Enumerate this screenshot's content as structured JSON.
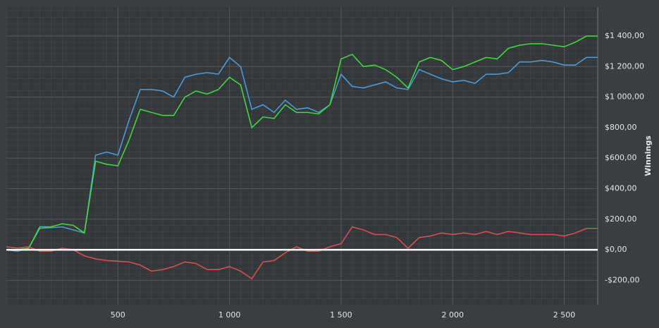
{
  "chart_data": {
    "type": "line",
    "y_label": "Winnings",
    "x": [
      0,
      50,
      100,
      150,
      200,
      250,
      300,
      350,
      400,
      450,
      500,
      550,
      600,
      650,
      700,
      750,
      800,
      850,
      900,
      950,
      1000,
      1050,
      1100,
      1150,
      1200,
      1250,
      1300,
      1350,
      1400,
      1450,
      1500,
      1550,
      1600,
      1650,
      1700,
      1750,
      1800,
      1850,
      1900,
      1950,
      2000,
      2050,
      2100,
      2150,
      2200,
      2250,
      2300,
      2350,
      2400,
      2450,
      2500,
      2550,
      2600,
      2650
    ],
    "series": [
      {
        "color": "#4a9fe0",
        "values": [
          0,
          -10,
          10,
          140,
          145,
          150,
          130,
          110,
          620,
          640,
          620,
          850,
          1050,
          1050,
          1040,
          1000,
          1130,
          1150,
          1160,
          1150,
          1260,
          1200,
          920,
          950,
          900,
          980,
          920,
          930,
          900,
          950,
          1150,
          1070,
          1060,
          1080,
          1100,
          1060,
          1050,
          1180,
          1150,
          1120,
          1100,
          1110,
          1090,
          1150,
          1150,
          1160,
          1230,
          1230,
          1240,
          1230,
          1210,
          1210,
          1260,
          1260
        ]
      },
      {
        "color": "#3de03d",
        "values": [
          0,
          0,
          10,
          150,
          150,
          170,
          160,
          110,
          580,
          560,
          550,
          720,
          920,
          900,
          880,
          880,
          1000,
          1040,
          1020,
          1050,
          1130,
          1080,
          800,
          870,
          860,
          950,
          900,
          900,
          890,
          950,
          1250,
          1280,
          1200,
          1210,
          1180,
          1130,
          1060,
          1230,
          1260,
          1240,
          1180,
          1200,
          1230,
          1260,
          1250,
          1320,
          1340,
          1350,
          1350,
          1340,
          1330,
          1360,
          1400,
          1400
        ]
      },
      {
        "color": "#e05050",
        "values": [
          20,
          10,
          20,
          -10,
          -10,
          10,
          0,
          -40,
          -60,
          -70,
          -75,
          -80,
          -100,
          -140,
          -130,
          -110,
          -80,
          -90,
          -130,
          -130,
          -110,
          -140,
          -190,
          -80,
          -70,
          -20,
          20,
          -10,
          -10,
          20,
          40,
          150,
          130,
          100,
          100,
          80,
          10,
          80,
          90,
          110,
          100,
          110,
          100,
          120,
          100,
          120,
          110,
          100,
          100,
          100,
          90,
          110,
          140,
          140
        ]
      }
    ],
    "xlim": [
      0,
      2650
    ],
    "ylim": [
      -360,
      1590
    ],
    "xticks": [
      500,
      {
        "value": 1000,
        "label": "1 000"
      },
      {
        "value": 1500,
        "label": "1 500"
      },
      {
        "value": 2000,
        "label": "2 000"
      },
      {
        "value": 2500,
        "label": "2 500"
      }
    ],
    "yticks": [
      {
        "value": -200,
        "label": "-$200,00"
      },
      {
        "value": 0,
        "label": "$0,00"
      },
      {
        "value": 200,
        "label": "$200,00"
      },
      {
        "value": 400,
        "label": "$400,00"
      },
      {
        "value": 600,
        "label": "$600,00"
      },
      {
        "value": 800,
        "label": "$800,00"
      },
      {
        "value": 1000,
        "label": "$1 000,00"
      },
      {
        "value": 1200,
        "label": "$1 200,00"
      },
      {
        "value": 1400,
        "label": "$1 400,00"
      }
    ],
    "grid": true,
    "zero_line": true
  }
}
